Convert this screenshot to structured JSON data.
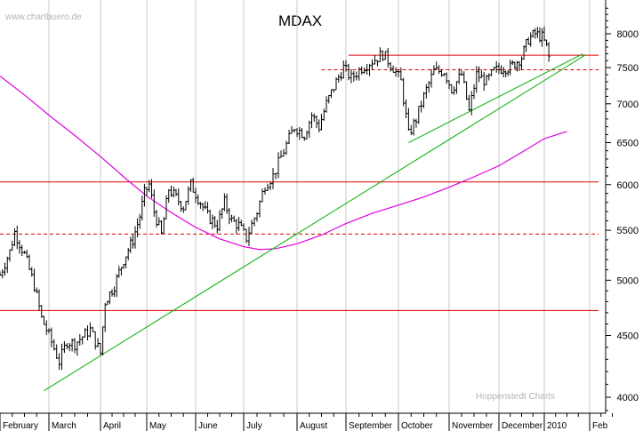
{
  "watermark_top": "www.chartbuero.de",
  "watermark_bottom": "Hoppenstedt Charts",
  "chart_data": {
    "type": "ohlc",
    "title": "MDAX",
    "xlabel": "",
    "ylabel": "",
    "y_scale": "log",
    "ylim": [
      3850,
      8500
    ],
    "y_ticks": [
      4000,
      4500,
      5000,
      5500,
      6000,
      6500,
      7000,
      7500,
      8000
    ],
    "month_labels": [
      "February",
      "March",
      "April",
      "May",
      "June",
      "July",
      "August",
      "September",
      "October",
      "November",
      "December",
      "2010",
      "Feb"
    ],
    "grid": true,
    "colors": {
      "price": "#000000",
      "resistance": "#e00000",
      "moving_average": "#e000e0",
      "trend": "#00b000",
      "grid": "#c8c8c8"
    },
    "horizontal_levels": [
      {
        "value": 7680,
        "style": "solid",
        "from_month": 7.05,
        "to_month": 12.2
      },
      {
        "value": 7470,
        "style": "dashed",
        "from_month": 6.5,
        "to_month": 12.2
      },
      {
        "value": 6030,
        "style": "solid",
        "from_month": 0,
        "to_month": 12.2
      },
      {
        "value": 5460,
        "style": "dashed",
        "from_month": 0,
        "to_month": 12.2
      },
      {
        "value": 4720,
        "style": "solid",
        "from_month": 0,
        "to_month": 12.2
      }
    ],
    "trend_lines": [
      {
        "from": [
          0.9,
          4050
        ],
        "to": [
          11.9,
          7680
        ]
      },
      {
        "from": [
          8.2,
          6500
        ],
        "to": [
          11.85,
          7700
        ]
      }
    ],
    "moving_average": [
      [
        0.0,
        7380
      ],
      [
        0.5,
        7120
      ],
      [
        1.0,
        6850
      ],
      [
        1.5,
        6590
      ],
      [
        2.0,
        6330
      ],
      [
        2.5,
        6090
      ],
      [
        3.0,
        5870
      ],
      [
        3.5,
        5690
      ],
      [
        4.0,
        5530
      ],
      [
        4.5,
        5410
      ],
      [
        5.0,
        5330
      ],
      [
        5.3,
        5300
      ],
      [
        5.6,
        5310
      ],
      [
        6.0,
        5360
      ],
      [
        6.5,
        5450
      ],
      [
        7.0,
        5570
      ],
      [
        7.5,
        5680
      ],
      [
        8.0,
        5770
      ],
      [
        8.5,
        5860
      ],
      [
        9.0,
        5970
      ],
      [
        9.5,
        6090
      ],
      [
        10.0,
        6220
      ],
      [
        10.5,
        6380
      ],
      [
        11.0,
        6550
      ],
      [
        11.5,
        6640
      ]
    ],
    "close_path": [
      [
        0.0,
        5050
      ],
      [
        0.2,
        5280
      ],
      [
        0.3,
        5480
      ],
      [
        0.5,
        5250
      ],
      [
        0.7,
        4950
      ],
      [
        0.85,
        4650
      ],
      [
        1.0,
        4500
      ],
      [
        1.2,
        4280
      ],
      [
        1.35,
        4450
      ],
      [
        1.5,
        4430
      ],
      [
        1.8,
        4550
      ],
      [
        2.0,
        4350
      ],
      [
        2.1,
        4800
      ],
      [
        2.3,
        4950
      ],
      [
        2.5,
        5200
      ],
      [
        2.7,
        5400
      ],
      [
        2.85,
        5650
      ],
      [
        2.95,
        5900
      ],
      [
        3.05,
        6000
      ],
      [
        3.15,
        5700
      ],
      [
        3.3,
        5450
      ],
      [
        3.45,
        5950
      ],
      [
        3.6,
        5850
      ],
      [
        3.75,
        5750
      ],
      [
        3.9,
        6000
      ],
      [
        4.05,
        5850
      ],
      [
        4.25,
        5650
      ],
      [
        4.45,
        5550
      ],
      [
        4.6,
        5800
      ],
      [
        4.75,
        5600
      ],
      [
        4.9,
        5550
      ],
      [
        5.05,
        5420
      ],
      [
        5.25,
        5700
      ],
      [
        5.4,
        6000
      ],
      [
        5.55,
        6100
      ],
      [
        5.75,
        6400
      ],
      [
        5.95,
        6700
      ],
      [
        6.15,
        6600
      ],
      [
        6.3,
        6850
      ],
      [
        6.45,
        6700
      ],
      [
        6.6,
        7000
      ],
      [
        6.8,
        7300
      ],
      [
        6.95,
        7500
      ],
      [
        7.1,
        7350
      ],
      [
        7.3,
        7500
      ],
      [
        7.55,
        7620
      ],
      [
        7.7,
        7700
      ],
      [
        7.9,
        7500
      ],
      [
        8.05,
        7300
      ],
      [
        8.2,
        6600
      ],
      [
        8.35,
        6800
      ],
      [
        8.5,
        7100
      ],
      [
        8.7,
        7450
      ],
      [
        8.9,
        7450
      ],
      [
        9.05,
        7200
      ],
      [
        9.25,
        7400
      ],
      [
        9.4,
        6900
      ],
      [
        9.55,
        7400
      ],
      [
        9.75,
        7300
      ],
      [
        9.9,
        7450
      ],
      [
        10.1,
        7500
      ],
      [
        10.25,
        7500
      ],
      [
        10.5,
        7650
      ],
      [
        10.65,
        7920
      ],
      [
        10.8,
        8000
      ],
      [
        10.95,
        7950
      ],
      [
        11.05,
        7800
      ],
      [
        11.15,
        7500
      ]
    ]
  }
}
